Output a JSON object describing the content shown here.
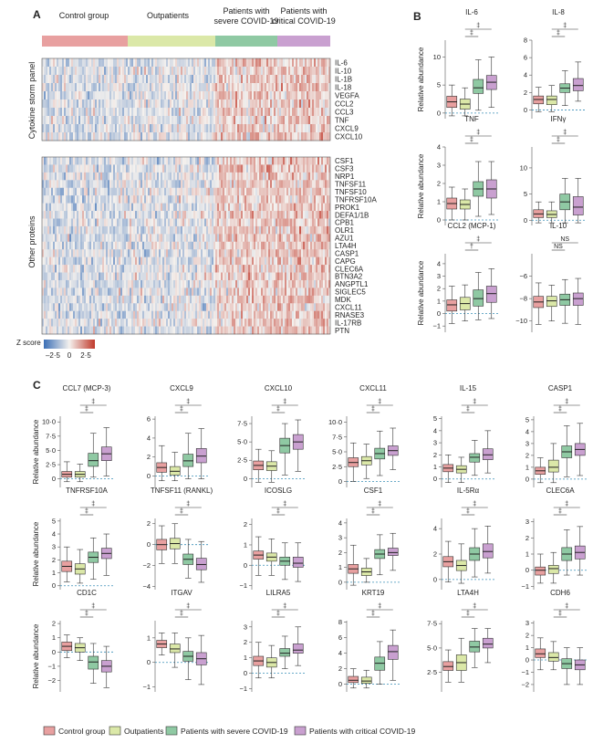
{
  "panel_labels": [
    "A",
    "B",
    "C"
  ],
  "groups": [
    "Control group",
    "Outpatients",
    "Patients with severe COVID-19",
    "Patients with critical COVID-19"
  ],
  "group_header": [
    "Control group",
    "Outpatients",
    "Patients with\nsevere COVID-19",
    "Patients with\ncritical COVID-19"
  ],
  "colors": {
    "control": "#e8a0a0",
    "outpatients": "#dbe8a8",
    "severe": "#8fc9a3",
    "critical": "#c9a0d0",
    "baseline": "#3a8fb7",
    "heat_low": "#3b6fb6",
    "heat_mid": "#f4f1ee",
    "heat_high": "#c0392b"
  },
  "heatmap": {
    "top_panel_label": "Cytokine storm panel",
    "bottom_panel_label": "Other proteins",
    "top_rows": [
      "IL-6",
      "IL-10",
      "IL-1B",
      "IL-18",
      "VEGFA",
      "CCL2",
      "CCL3",
      "TNF",
      "CXCL9",
      "CXCL10"
    ],
    "bottom_rows": [
      "CSF1",
      "CSF3",
      "NRP1",
      "TNFSF11",
      "TNFSF10",
      "TNFRSF10A",
      "PROK1",
      "DEFA1/1B",
      "CPB1",
      "OLR1",
      "AZU1",
      "LTA4H",
      "CASP1",
      "CAPG",
      "CLEC6A",
      "BTN3A2",
      "ANGPTL1",
      "SIGLEC5",
      "MDK",
      "CXCL11",
      "RNASE3",
      "IL-17RB",
      "PTN"
    ],
    "scale_title": "Z score",
    "scale_ticks": [
      "–2·5",
      "0",
      "2·5"
    ]
  },
  "chart_data": [
    {
      "type": "box",
      "panel": "B",
      "title": "IL-6",
      "ylabel": "Relative abundance",
      "ylim": [
        -1,
        13
      ],
      "yticks": [
        "0",
        "5",
        "10"
      ],
      "yticks_val": [
        0,
        5,
        10
      ],
      "sig": [
        "‡",
        "‡"
      ],
      "boxes": [
        [
          -0.5,
          1,
          2,
          3,
          5
        ],
        [
          -0.5,
          0.7,
          1.6,
          2.5,
          4.5
        ],
        [
          0.5,
          3.5,
          4.5,
          6,
          9.5
        ],
        [
          1,
          4.2,
          5.5,
          6.7,
          10
        ]
      ]
    },
    {
      "type": "box",
      "panel": "B",
      "title": "IL-8",
      "ylabel": "",
      "ylim": [
        -1,
        8
      ],
      "yticks": [
        "0",
        "2",
        "4",
        "6",
        "8"
      ],
      "yticks_val": [
        0,
        2,
        4,
        6,
        8
      ],
      "sig": [
        "‡",
        "‡"
      ],
      "boxes": [
        [
          -0.2,
          0.7,
          1.2,
          1.6,
          2.6
        ],
        [
          -0.2,
          0.6,
          1.2,
          1.6,
          2.8
        ],
        [
          0.5,
          2,
          2.5,
          3,
          4.5
        ],
        [
          1,
          2.2,
          2.8,
          3.6,
          5.5
        ]
      ]
    },
    {
      "type": "box",
      "panel": "B",
      "title": "TNF",
      "ylabel": "Relative abundance",
      "ylim": [
        -0.3,
        4
      ],
      "yticks": [
        "0",
        "1",
        "2",
        "3",
        "4"
      ],
      "yticks_val": [
        0,
        1,
        2,
        3,
        4
      ],
      "sig": [
        "‡",
        "‡"
      ],
      "boxes": [
        [
          0,
          0.6,
          0.9,
          1.2,
          1.8
        ],
        [
          0,
          0.6,
          0.85,
          1.1,
          1.7
        ],
        [
          0.2,
          1.3,
          1.7,
          2.1,
          3.2
        ],
        [
          0.3,
          1.2,
          1.7,
          2.2,
          3.2
        ]
      ]
    },
    {
      "type": "box",
      "panel": "B",
      "title": "IFNγ",
      "ylabel": "",
      "ylim": [
        -1,
        14
      ],
      "yticks": [
        "0",
        "5",
        "10"
      ],
      "yticks_val": [
        0,
        5,
        10
      ],
      "sig": [
        "‡",
        "‡"
      ],
      "boxes": [
        [
          -0.5,
          0.5,
          1.2,
          2,
          3.5
        ],
        [
          -0.5,
          0.5,
          1.1,
          1.8,
          3.5
        ],
        [
          -0.5,
          2,
          3.5,
          5,
          8
        ],
        [
          -0.5,
          1,
          2.5,
          4.5,
          8
        ]
      ]
    },
    {
      "type": "box",
      "panel": "B",
      "title": "CCL2 (MCP-1)",
      "ylabel": "Relative abundance",
      "ylim": [
        -1.5,
        4.8
      ],
      "yticks": [
        "−1",
        "0",
        "1",
        "2",
        "3",
        "4"
      ],
      "yticks_val": [
        -1,
        0,
        1,
        2,
        3,
        4
      ],
      "sig": [
        "†",
        "‡"
      ],
      "boxes": [
        [
          -0.8,
          0.2,
          0.7,
          1.1,
          2.2
        ],
        [
          -0.6,
          0.3,
          0.8,
          1.3,
          2.3
        ],
        [
          -0.5,
          0.6,
          1.2,
          1.9,
          3.3
        ],
        [
          -0.4,
          0.9,
          1.6,
          2.2,
          3.6
        ]
      ]
    },
    {
      "type": "box",
      "panel": "B",
      "title": "IL-10",
      "ylabel": "",
      "ylim": [
        -11,
        -4
      ],
      "yticks": [
        "−10",
        "−8",
        "−6"
      ],
      "yticks_val": [
        -10,
        -8,
        -6
      ],
      "sig": [
        "NS",
        "NS"
      ],
      "boxes": [
        [
          -10.3,
          -8.8,
          -8.3,
          -7.8,
          -6.6
        ],
        [
          -10,
          -8.7,
          -8.2,
          -7.8,
          -6.8
        ],
        [
          -10.2,
          -8.6,
          -8.1,
          -7.6,
          -6.3
        ],
        [
          -10.3,
          -8.6,
          -8,
          -7.5,
          -6.2
        ]
      ]
    },
    {
      "type": "box",
      "panel": "C",
      "title": "CCL7 (MCP-3)",
      "ylabel": "Relative abundance",
      "ylim": [
        -1.5,
        11
      ],
      "yticks": [
        "0",
        "2·5",
        "5·0",
        "7·5",
        "10·0"
      ],
      "yticks_val": [
        0,
        2.5,
        5,
        7.5,
        10
      ],
      "sig": [
        "‡",
        "‡"
      ],
      "boxes": [
        [
          -0.5,
          0.3,
          0.8,
          1.3,
          3
        ],
        [
          -0.5,
          0.3,
          0.8,
          1.3,
          2.6
        ],
        [
          0.3,
          2.2,
          3.2,
          4.5,
          8
        ],
        [
          0.5,
          3.2,
          4.4,
          5.6,
          9
        ]
      ]
    },
    {
      "type": "box",
      "panel": "C",
      "title": "CXCL9",
      "ylabel": "",
      "ylim": [
        -1.2,
        6.3
      ],
      "yticks": [
        "0",
        "2",
        "4",
        "6"
      ],
      "yticks_val": [
        0,
        2,
        4,
        6
      ],
      "sig": [
        "‡",
        "‡"
      ],
      "boxes": [
        [
          -0.5,
          0.4,
          0.9,
          1.4,
          3.2
        ],
        [
          -0.5,
          0.1,
          0.5,
          1,
          2.5
        ],
        [
          -0.3,
          1,
          1.6,
          2.3,
          4.5
        ],
        [
          -0.3,
          1.4,
          2.1,
          2.9,
          5
        ]
      ]
    },
    {
      "type": "box",
      "panel": "C",
      "title": "CXCL10",
      "ylabel": "",
      "ylim": [
        -1.2,
        8.5
      ],
      "yticks": [
        "0",
        "2·5",
        "5·0",
        "7·5"
      ],
      "yticks_val": [
        0,
        2.5,
        5,
        7.5
      ],
      "sig": [
        "‡",
        "‡"
      ],
      "boxes": [
        [
          -0.5,
          1.2,
          1.8,
          2.4,
          4
        ],
        [
          -0.5,
          1.1,
          1.7,
          2.3,
          3.8
        ],
        [
          0.5,
          3.5,
          4.5,
          5.5,
          7.5
        ],
        [
          1,
          4,
          5,
          6,
          8
        ]
      ]
    },
    {
      "type": "box",
      "panel": "C",
      "title": "CXCL11",
      "ylabel": "",
      "ylim": [
        -1,
        11
      ],
      "yticks": [
        "0",
        "2·5",
        "5·0",
        "7·5",
        "10·0"
      ],
      "yticks_val": [
        0,
        2.5,
        5,
        7.5,
        10
      ],
      "sig": [
        "‡",
        "‡"
      ],
      "boxes": [
        [
          0,
          2.5,
          3.2,
          4,
          6.5
        ],
        [
          0.5,
          2.8,
          3.5,
          4.2,
          6.3
        ],
        [
          1,
          3.8,
          4.7,
          5.6,
          8.5
        ],
        [
          2,
          4.4,
          5.2,
          6,
          9
        ]
      ]
    },
    {
      "type": "box",
      "panel": "C",
      "title": "IL-15",
      "ylabel": "",
      "ylim": [
        -0.7,
        5.2
      ],
      "yticks": [
        "0",
        "1",
        "2",
        "3",
        "4",
        "5"
      ],
      "yticks_val": [
        0,
        1,
        2,
        3,
        4,
        5
      ],
      "sig": [
        "‡",
        "‡"
      ],
      "boxes": [
        [
          -0.3,
          0.6,
          0.9,
          1.2,
          2
        ],
        [
          -0.3,
          0.5,
          0.8,
          1.1,
          1.8
        ],
        [
          0.3,
          1.4,
          1.8,
          2.1,
          3.2
        ],
        [
          0.5,
          1.6,
          2,
          2.5,
          4
        ]
      ]
    },
    {
      "type": "box",
      "panel": "C",
      "title": "CASP1",
      "ylabel": "",
      "ylim": [
        -0.7,
        5.3
      ],
      "yticks": [
        "0",
        "1",
        "2",
        "3",
        "4",
        "5"
      ],
      "yticks_val": [
        0,
        1,
        2,
        3,
        4,
        5
      ],
      "sig": [
        "‡",
        "‡"
      ],
      "boxes": [
        [
          -0.3,
          0.4,
          0.7,
          1,
          1.8
        ],
        [
          -0.3,
          0.6,
          1,
          1.6,
          3
        ],
        [
          0.2,
          1.8,
          2.3,
          2.8,
          4.5
        ],
        [
          0.3,
          2,
          2.5,
          3,
          4.7
        ]
      ]
    },
    {
      "type": "box",
      "panel": "C",
      "title": "TNFRSF10A",
      "ylabel": "Relative abundance",
      "ylim": [
        -0.3,
        5.2
      ],
      "yticks": [
        "0",
        "1",
        "2",
        "3",
        "4",
        "5"
      ],
      "yticks_val": [
        0,
        1,
        2,
        3,
        4,
        5
      ],
      "sig": [
        "‡",
        "‡"
      ],
      "boxes": [
        [
          0.3,
          1.1,
          1.5,
          1.9,
          3
        ],
        [
          0.2,
          0.9,
          1.3,
          1.7,
          2.8
        ],
        [
          0.5,
          1.8,
          2.2,
          2.6,
          3.7
        ],
        [
          0.8,
          2.1,
          2.5,
          2.9,
          4
        ]
      ]
    },
    {
      "type": "box",
      "panel": "C",
      "title": "TNFSF11 (RANKL)",
      "ylabel": "",
      "ylim": [
        -4.3,
        2.5
      ],
      "yticks": [
        "−4",
        "−2",
        "0",
        "2"
      ],
      "yticks_val": [
        -4,
        -2,
        0,
        2
      ],
      "sig": [
        "‡",
        "‡"
      ],
      "boxes": [
        [
          -1.8,
          -0.5,
          0,
          0.5,
          1.8
        ],
        [
          -1.8,
          -0.4,
          0.1,
          0.6,
          2
        ],
        [
          -3.2,
          -1.9,
          -1.4,
          -0.9,
          0.5
        ],
        [
          -3.6,
          -2.4,
          -1.9,
          -1.3,
          0.3
        ]
      ]
    },
    {
      "type": "box",
      "panel": "C",
      "title": "ICOSLG",
      "ylabel": "",
      "ylim": [
        -1.2,
        2.3
      ],
      "yticks": [
        "−1",
        "0",
        "1",
        "2"
      ],
      "yticks_val": [
        -1,
        0,
        1,
        2
      ],
      "sig": [
        "‡",
        "‡"
      ],
      "boxes": [
        [
          -0.5,
          0.3,
          0.5,
          0.7,
          1.4
        ],
        [
          -0.5,
          0.2,
          0.4,
          0.6,
          1.3
        ],
        [
          -0.7,
          0,
          0.2,
          0.4,
          1.1
        ],
        [
          -0.8,
          -0.1,
          0.1,
          0.4,
          1.1
        ]
      ]
    },
    {
      "type": "box",
      "panel": "C",
      "title": "CSF1",
      "ylabel": "",
      "ylim": [
        -0.5,
        4.3
      ],
      "yticks": [
        "0",
        "1",
        "2",
        "3",
        "4"
      ],
      "yticks_val": [
        0,
        1,
        2,
        3,
        4
      ],
      "sig": [
        "‡",
        "‡"
      ],
      "boxes": [
        [
          -0.2,
          0.6,
          0.9,
          1.2,
          2.5
        ],
        [
          0,
          0.45,
          0.7,
          0.95,
          1.6
        ],
        [
          0.5,
          1.6,
          1.9,
          2.2,
          3.2
        ],
        [
          0.8,
          1.8,
          2,
          2.3,
          3.3
        ]
      ]
    },
    {
      "type": "box",
      "panel": "C",
      "title": "IL-5Rα",
      "ylabel": "",
      "ylim": [
        -0.8,
        4.8
      ],
      "yticks": [
        "0",
        "2",
        "4"
      ],
      "yticks_val": [
        0,
        2,
        4
      ],
      "sig": [
        "‡",
        "‡"
      ],
      "boxes": [
        [
          -0.2,
          1,
          1.4,
          1.8,
          3
        ],
        [
          -0.3,
          0.7,
          1.1,
          1.5,
          2.8
        ],
        [
          0.2,
          1.5,
          2,
          2.5,
          4
        ],
        [
          0.5,
          1.7,
          2.2,
          2.8,
          4.2
        ]
      ]
    },
    {
      "type": "box",
      "panel": "C",
      "title": "CLEC6A",
      "ylabel": "",
      "ylim": [
        -1.2,
        3.2
      ],
      "yticks": [
        "−1",
        "0",
        "1",
        "2",
        "3"
      ],
      "yticks_val": [
        -1,
        0,
        1,
        2,
        3
      ],
      "sig": [
        "‡",
        "‡"
      ],
      "boxes": [
        [
          -0.8,
          -0.3,
          0,
          0.2,
          1
        ],
        [
          -0.8,
          -0.2,
          0.1,
          0.3,
          1.1
        ],
        [
          -0.3,
          0.6,
          1,
          1.4,
          2.5
        ],
        [
          -0.3,
          0.7,
          1.1,
          1.5,
          2.7
        ]
      ]
    },
    {
      "type": "box",
      "panel": "C",
      "title": "CD1C",
      "ylabel": "Relative abundance",
      "ylim": [
        -2.8,
        2.2
      ],
      "yticks": [
        "−2",
        "−1",
        "0",
        "1",
        "2"
      ],
      "yticks_val": [
        -2,
        -1,
        0,
        1,
        2
      ],
      "sig": [
        "‡",
        "‡"
      ],
      "boxes": [
        [
          -0.4,
          0.1,
          0.4,
          0.7,
          1.2
        ],
        [
          -0.6,
          0,
          0.3,
          0.6,
          1
        ],
        [
          -2.2,
          -1.2,
          -0.7,
          -0.3,
          0.6
        ],
        [
          -2.5,
          -1.4,
          -1,
          -0.6,
          0.4
        ]
      ]
    },
    {
      "type": "box",
      "panel": "C",
      "title": "ITGAV",
      "ylabel": "",
      "ylim": [
        -1.2,
        1.7
      ],
      "yticks": [
        "−1",
        "0",
        "1"
      ],
      "yticks_val": [
        -1,
        0,
        1
      ],
      "sig": [
        "‡",
        "‡"
      ],
      "boxes": [
        [
          0.3,
          0.6,
          0.75,
          0.9,
          1.2
        ],
        [
          -0.2,
          0.4,
          0.55,
          0.75,
          1.2
        ],
        [
          -0.7,
          0.05,
          0.25,
          0.45,
          1
        ],
        [
          -0.9,
          -0.1,
          0.15,
          0.4,
          1.1
        ]
      ]
    },
    {
      "type": "box",
      "panel": "C",
      "title": "LILRA5",
      "ylabel": "",
      "ylim": [
        -1.2,
        3.4
      ],
      "yticks": [
        "−1",
        "0",
        "1",
        "2",
        "3"
      ],
      "yticks_val": [
        -1,
        0,
        1,
        2,
        3
      ],
      "sig": [
        "‡",
        "‡"
      ],
      "boxes": [
        [
          -0.3,
          0.5,
          0.8,
          1.1,
          2
        ],
        [
          -0.3,
          0.4,
          0.7,
          1,
          1.8
        ],
        [
          0.3,
          1.1,
          1.3,
          1.6,
          2.4
        ],
        [
          0.5,
          1.3,
          1.5,
          1.9,
          3
        ]
      ]
    },
    {
      "type": "box",
      "panel": "C",
      "title": "KRT19",
      "ylabel": "",
      "ylim": [
        -1,
        8.2
      ],
      "yticks": [
        "0",
        "2",
        "4",
        "6",
        "8"
      ],
      "yticks_val": [
        0,
        2,
        4,
        6,
        8
      ],
      "sig": [
        "‡",
        "‡"
      ],
      "boxes": [
        [
          -0.5,
          0.2,
          0.5,
          1,
          2
        ],
        [
          -0.5,
          0.1,
          0.4,
          0.9,
          1.8
        ],
        [
          0,
          1.8,
          2.7,
          3.5,
          5.5
        ],
        [
          0.5,
          3.2,
          4.2,
          5,
          7
        ]
      ]
    },
    {
      "type": "box",
      "panel": "C",
      "title": "LTA4H",
      "ylabel": "",
      "ylim": [
        0.5,
        7.8
      ],
      "yticks": [
        "2·5",
        "5·0",
        "7·5"
      ],
      "yticks_val": [
        2.5,
        5,
        7.5
      ],
      "sig": [
        "‡",
        "‡"
      ],
      "boxes": [
        [
          1.5,
          2.7,
          3.1,
          3.6,
          4.8
        ],
        [
          1.5,
          2.7,
          3.5,
          4.3,
          6
        ],
        [
          3,
          4.6,
          5.1,
          5.7,
          7
        ],
        [
          3.5,
          5,
          5.4,
          6,
          7
        ]
      ]
    },
    {
      "type": "box",
      "panel": "C",
      "title": "CDH6",
      "ylabel": "",
      "ylim": [
        -2.6,
        3.2
      ],
      "yticks": [
        "−2",
        "−1",
        "0",
        "1",
        "2",
        "3"
      ],
      "yticks_val": [
        -2,
        -1,
        0,
        1,
        2,
        3
      ],
      "sig": [
        "‡",
        "‡"
      ],
      "boxes": [
        [
          -0.8,
          0.2,
          0.5,
          0.9,
          1.8
        ],
        [
          -0.8,
          -0.1,
          0.2,
          0.6,
          1.5
        ],
        [
          -2,
          -0.7,
          -0.3,
          0.1,
          1
        ],
        [
          -2,
          -0.8,
          -0.4,
          0,
          1
        ]
      ]
    }
  ]
}
